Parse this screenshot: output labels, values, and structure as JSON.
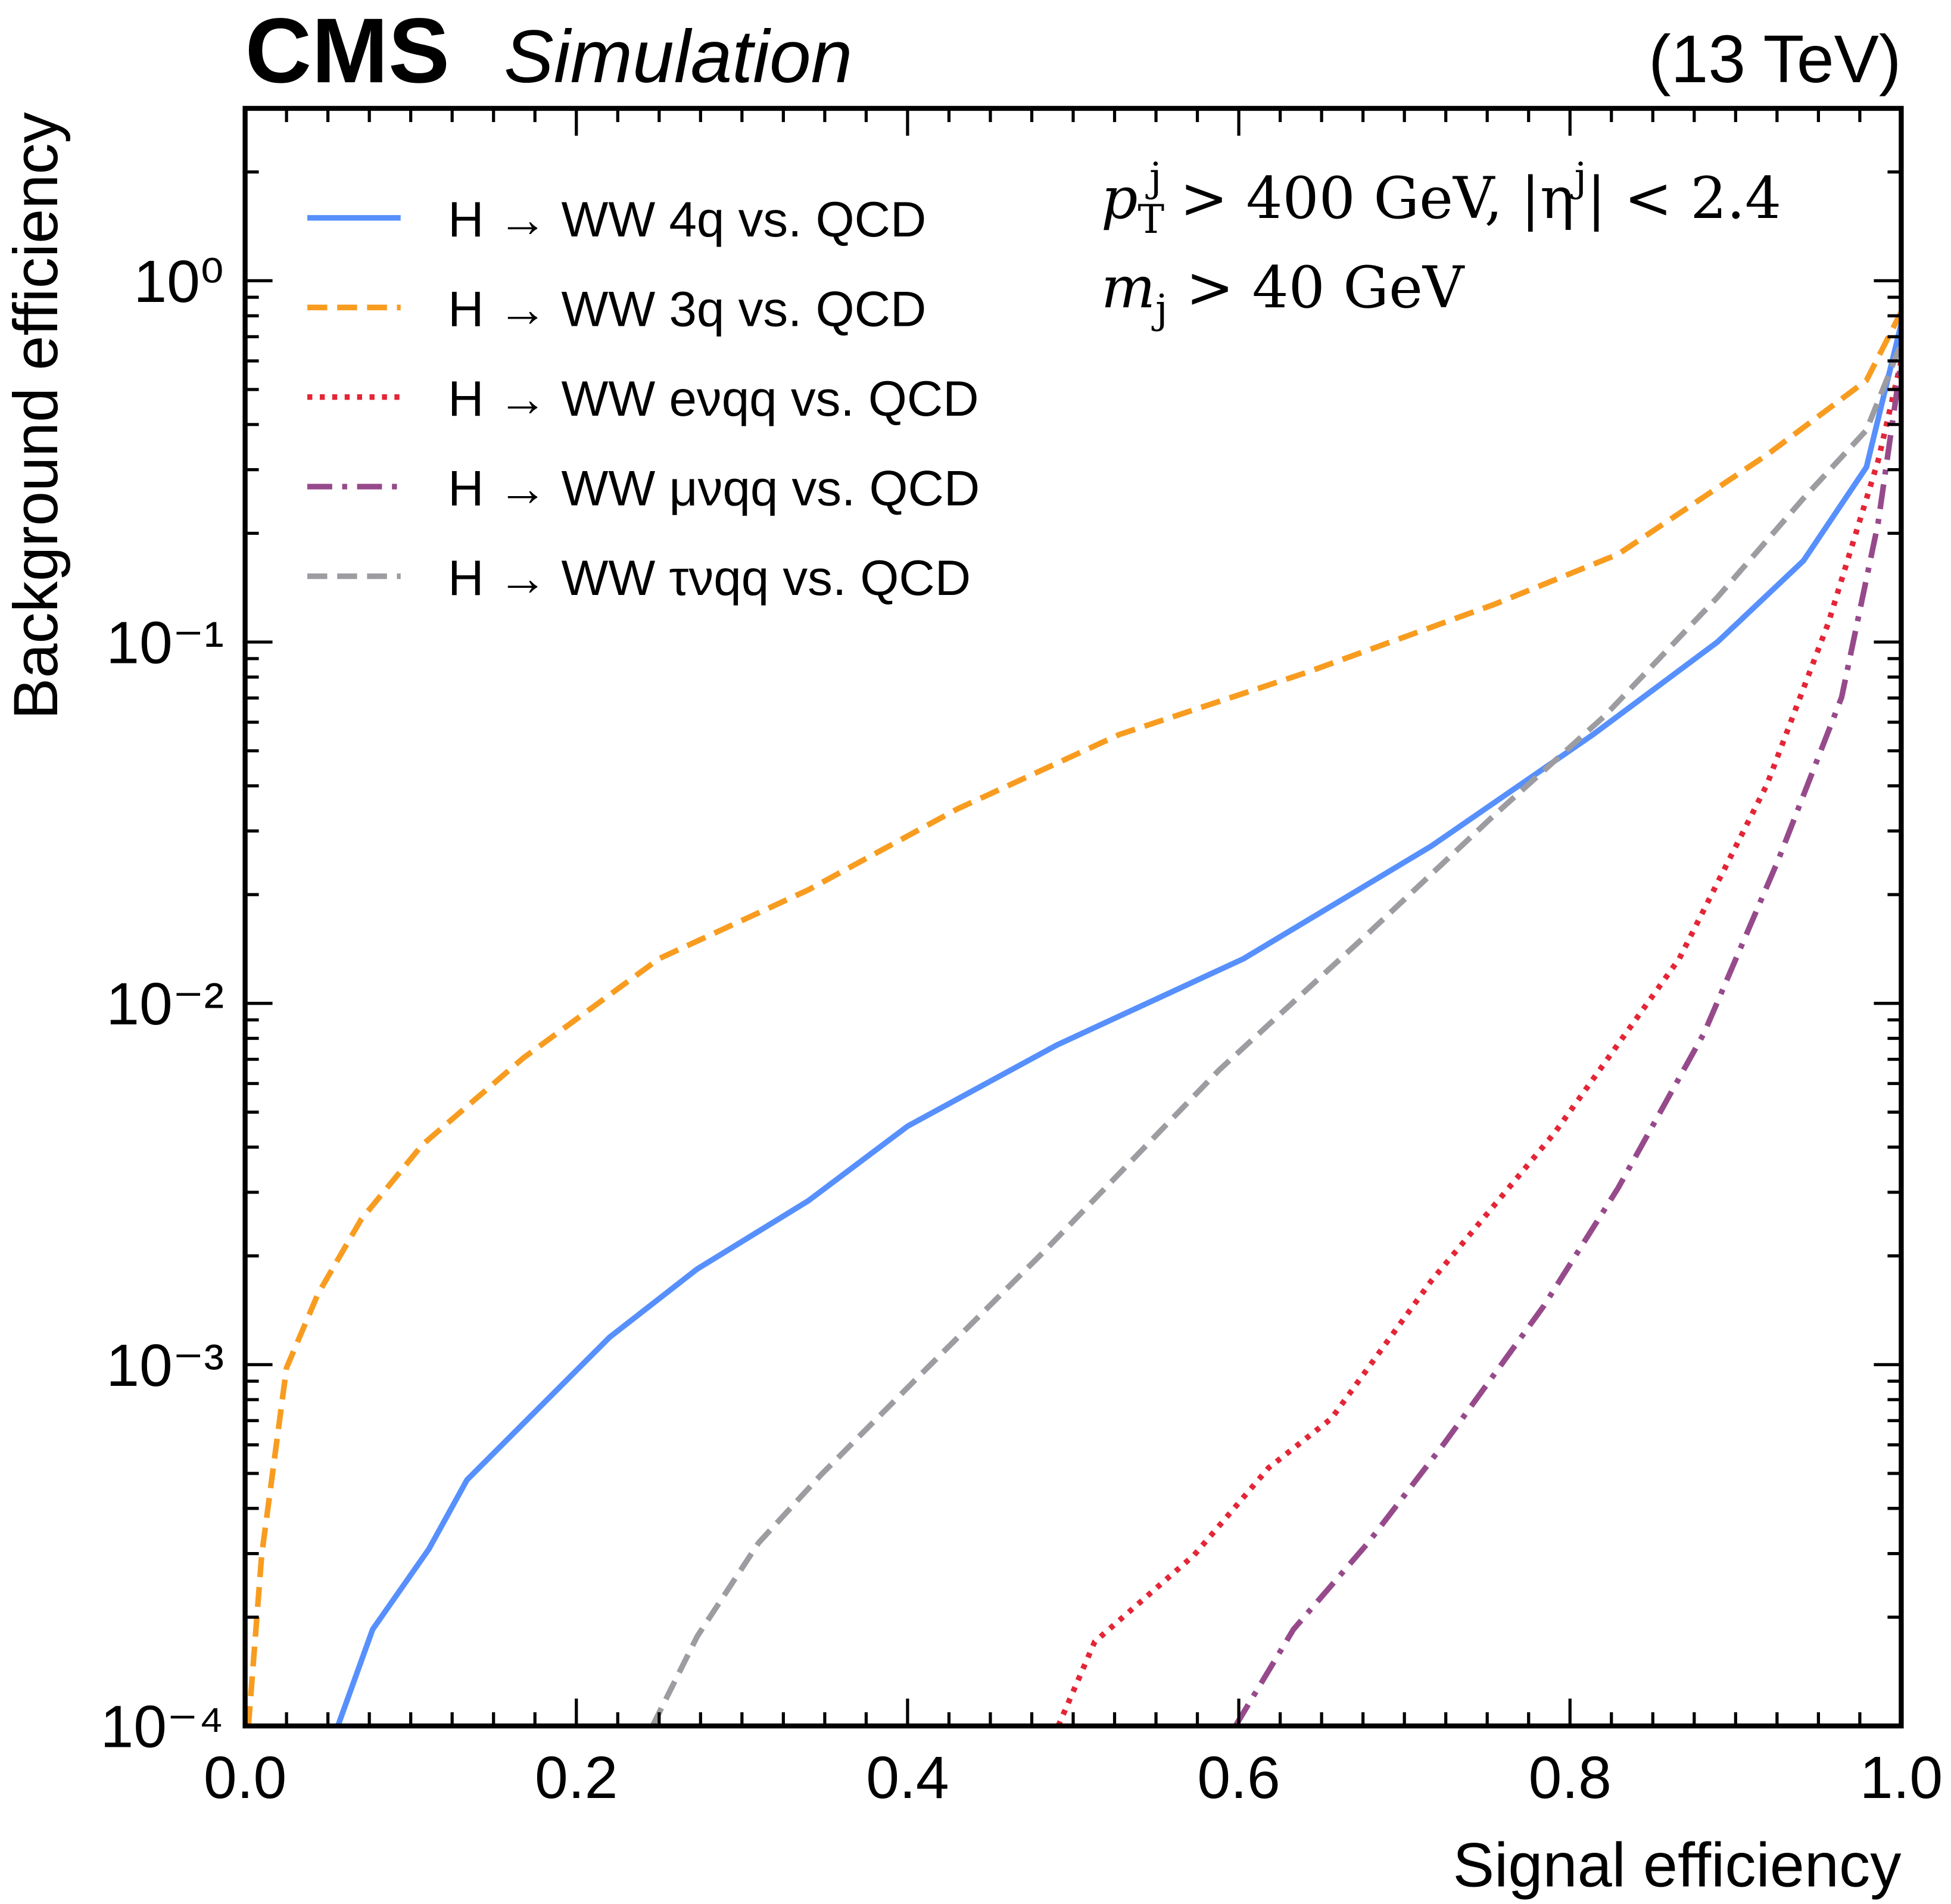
{
  "chart_data": {
    "type": "line",
    "title": "CMS",
    "subtitle": "Simulation",
    "energy_label": "(13 TeV)",
    "x_label": "Signal efficiency",
    "y_label": "Background efficiency",
    "yscale": "log",
    "xlim": [
      0,
      1
    ],
    "ylim": [
      0.0001,
      3
    ],
    "xticks": [
      {
        "value": 0,
        "label": "0.0"
      },
      0.2,
      0.4,
      0.6,
      0.8,
      {
        "value": 1,
        "label": "1.0"
      }
    ],
    "yticks": [
      {
        "value": 0.0001,
        "label": "10⁻⁴"
      },
      {
        "value": 0.001,
        "label": "10⁻³"
      },
      {
        "value": 0.01,
        "label": "10⁻²"
      },
      {
        "value": 0.1,
        "label": "10⁻¹"
      },
      {
        "value": 1,
        "label": "10⁰"
      }
    ],
    "xminorticks": [
      0.025,
      0.05,
      0.075,
      0.1,
      0.125,
      0.15,
      0.175,
      0.225,
      0.25,
      0.275,
      0.3,
      0.325,
      0.35,
      0.375,
      0.425,
      0.45,
      0.475,
      0.5,
      0.525,
      0.55,
      0.575,
      0.625,
      0.65,
      0.675,
      0.7,
      0.725,
      0.75,
      0.775,
      0.825,
      0.85,
      0.875,
      0.9,
      0.925,
      0.95,
      0.975
    ],
    "yminorticks": [
      0.0002,
      0.0003,
      0.0004,
      0.0005,
      0.0006,
      0.0007,
      0.0008,
      0.0009,
      0.002,
      0.003,
      0.004,
      0.005,
      0.006,
      0.007,
      0.008,
      0.009,
      0.02,
      0.03,
      0.04,
      0.05,
      0.06,
      0.07,
      0.08,
      0.09,
      0.2,
      0.3,
      0.4,
      0.5,
      0.6,
      0.7,
      0.8,
      0.9,
      2
    ],
    "legend": "upper left",
    "annotations": [
      [
        {
          "text": "p"
        },
        {
          "text": "T",
          "shift": "sub"
        },
        {
          "text": "j",
          "shift": "sup"
        },
        {
          "text": " > 400 GeV, |η"
        },
        {
          "text": "j",
          "shift": "sup"
        },
        {
          "text": "| < 2.4"
        }
      ],
      [
        {
          "text": "m"
        },
        {
          "text": "j",
          "shift": "sub"
        },
        {
          "text": " > 40 GeV"
        }
      ]
    ],
    "series": [
      {
        "name": "H → WW 4q vs. QCD",
        "color": "#5790fc",
        "dash": "solid",
        "x": [
          0.056,
          0.077,
          0.111,
          0.134,
          0.175,
          0.22,
          0.273,
          0.34,
          0.4,
          0.49,
          0.603,
          0.716,
          0.814,
          0.889,
          0.941,
          0.979,
          1.0
        ],
        "values": [
          0.0001,
          0.000185,
          0.000309,
          0.00048,
          0.00074,
          0.00119,
          0.00184,
          0.00284,
          0.00457,
          0.00766,
          0.0133,
          0.0272,
          0.0555,
          0.1,
          0.168,
          0.305,
          0.76
        ]
      },
      {
        "name": "H → WW 3q vs. QCD",
        "color": "#f89c20",
        "dash": "dashed",
        "x": [
          0.002,
          0.01,
          0.025,
          0.044,
          0.07,
          0.107,
          0.168,
          0.25,
          0.34,
          0.43,
          0.528,
          0.641,
          0.754,
          0.829,
          0.919,
          0.979,
          1.0
        ],
        "values": [
          0.0001,
          0.000297,
          0.00098,
          0.00157,
          0.00252,
          0.00406,
          0.00706,
          0.0133,
          0.0206,
          0.0345,
          0.0555,
          0.0824,
          0.127,
          0.175,
          0.33,
          0.53,
          0.82
        ]
      },
      {
        "name": "H → WW eνqq vs. QCD",
        "color": "#e42536",
        "dash": "dotted",
        "x": [
          0.491,
          0.513,
          0.573,
          0.618,
          0.656,
          0.716,
          0.791,
          0.866,
          0.919,
          0.956,
          0.986,
          1.0
        ],
        "values": [
          0.0001,
          0.000171,
          0.000297,
          0.000518,
          0.00071,
          0.0017,
          0.0044,
          0.0133,
          0.0404,
          0.113,
          0.317,
          0.6
        ]
      },
      {
        "name": "H → WW μνqq vs. QCD",
        "color": "#964a8b",
        "dash": "dashdot",
        "x": [
          0.598,
          0.633,
          0.678,
          0.724,
          0.784,
          0.829,
          0.881,
          0.926,
          0.964,
          0.986,
          1.0
        ],
        "values": [
          0.0001,
          0.000185,
          0.000321,
          0.000605,
          0.00145,
          0.00308,
          0.00828,
          0.0251,
          0.0703,
          0.213,
          0.6
        ]
      },
      {
        "name": "H → WW τνqq vs. QCD",
        "color": "#9c9ca1",
        "dash": "dashed",
        "x": [
          0.246,
          0.273,
          0.31,
          0.348,
          0.408,
          0.483,
          0.588,
          0.678,
          0.754,
          0.821,
          0.889,
          0.941,
          0.979,
          1.0
        ],
        "values": [
          0.0001,
          0.000177,
          0.000321,
          0.000497,
          0.00094,
          0.00207,
          0.00653,
          0.0156,
          0.0331,
          0.0625,
          0.133,
          0.25,
          0.386,
          0.67
        ]
      }
    ]
  }
}
